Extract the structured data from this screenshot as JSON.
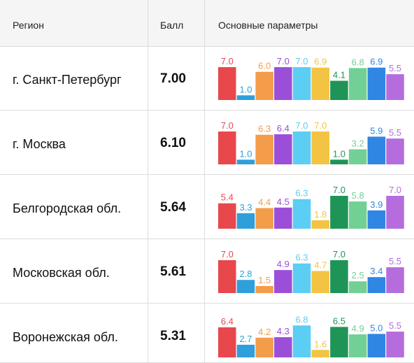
{
  "header": {
    "region": "Регион",
    "score": "Балл",
    "params": "Основные параметры"
  },
  "colors": [
    "#e8474c",
    "#2e9fdb",
    "#f39c4a",
    "#9b4fd8",
    "#5ccdf3",
    "#f3c443",
    "#1f9457",
    "#72d095",
    "#2f86e3",
    "#b56ddd"
  ],
  "chart_data": {
    "type": "bar",
    "ylim": [
      0,
      7
    ],
    "rows": [
      {
        "region": "г. Санкт-Петербург",
        "score": "7.00",
        "values": [
          7.0,
          1.0,
          6.0,
          7.0,
          7.0,
          6.9,
          4.1,
          6.8,
          6.9,
          5.5
        ]
      },
      {
        "region": "г. Москва",
        "score": "6.10",
        "values": [
          7.0,
          1.0,
          6.3,
          6.4,
          7.0,
          7.0,
          1.0,
          3.2,
          5.9,
          5.5
        ]
      },
      {
        "region": "Белгородская обл.",
        "score": "5.64",
        "values": [
          5.4,
          3.3,
          4.4,
          4.5,
          6.3,
          1.8,
          7.0,
          5.8,
          3.9,
          7.0
        ]
      },
      {
        "region": "Московская обл.",
        "score": "5.61",
        "values": [
          7.0,
          2.8,
          1.5,
          4.9,
          6.3,
          4.7,
          7.0,
          2.5,
          3.4,
          5.5
        ]
      },
      {
        "region": "Воронежская обл.",
        "score": "5.31",
        "values": [
          6.4,
          2.7,
          4.2,
          4.3,
          6.8,
          1.6,
          6.5,
          4.9,
          5.0,
          5.5
        ]
      }
    ]
  }
}
